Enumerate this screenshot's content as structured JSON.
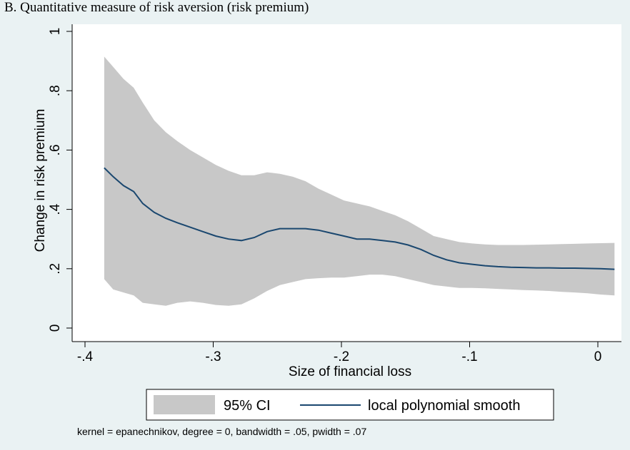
{
  "chart_data": {
    "type": "line",
    "title": "B. Quantitative measure of risk aversion (risk premium)",
    "xlabel": "Size of financial loss",
    "ylabel": "Change in risk premium",
    "xlim": [
      -0.4,
      0.015
    ],
    "ylim": [
      0,
      1
    ],
    "x_ticks": [
      -0.4,
      -0.3,
      -0.2,
      -0.1,
      0
    ],
    "x_tick_labels": [
      "-.4",
      "-.3",
      "-.2",
      "-.1",
      "0"
    ],
    "y_ticks": [
      0,
      0.2,
      0.4,
      0.6,
      0.8,
      1
    ],
    "y_tick_labels": [
      "0",
      ".2",
      ".4",
      ".6",
      ".8",
      "1"
    ],
    "grid": false,
    "legend_position": "bottom",
    "colors": {
      "plot_region": "#ffffff",
      "outer_background": "#eaf2f3",
      "ci_band": "#c8c8c8",
      "line": "#1a476f"
    },
    "series": [
      {
        "name": "95% CI",
        "kind": "band",
        "x": [
          -0.385,
          -0.378,
          -0.37,
          -0.362,
          -0.355,
          -0.346,
          -0.337,
          -0.328,
          -0.318,
          -0.308,
          -0.298,
          -0.288,
          -0.278,
          -0.268,
          -0.258,
          -0.248,
          -0.238,
          -0.228,
          -0.218,
          -0.208,
          -0.198,
          -0.188,
          -0.178,
          -0.168,
          -0.158,
          -0.148,
          -0.138,
          -0.128,
          -0.118,
          -0.108,
          -0.098,
          -0.088,
          -0.078,
          -0.068,
          -0.058,
          -0.048,
          -0.038,
          -0.028,
          -0.018,
          -0.008,
          0.002,
          0.013
        ],
        "upper": [
          0.915,
          0.88,
          0.84,
          0.81,
          0.76,
          0.7,
          0.66,
          0.63,
          0.6,
          0.575,
          0.55,
          0.53,
          0.515,
          0.515,
          0.525,
          0.52,
          0.51,
          0.495,
          0.47,
          0.45,
          0.43,
          0.42,
          0.41,
          0.395,
          0.38,
          0.36,
          0.335,
          0.31,
          0.3,
          0.29,
          0.285,
          0.282,
          0.28,
          0.28,
          0.28,
          0.281,
          0.282,
          0.283,
          0.284,
          0.285,
          0.286,
          0.287
        ],
        "lower": [
          0.165,
          0.13,
          0.12,
          0.11,
          0.085,
          0.08,
          0.075,
          0.085,
          0.09,
          0.085,
          0.078,
          0.075,
          0.08,
          0.1,
          0.125,
          0.145,
          0.155,
          0.165,
          0.168,
          0.17,
          0.17,
          0.175,
          0.18,
          0.18,
          0.175,
          0.165,
          0.155,
          0.145,
          0.14,
          0.135,
          0.135,
          0.134,
          0.132,
          0.13,
          0.128,
          0.127,
          0.125,
          0.122,
          0.12,
          0.117,
          0.113,
          0.11
        ]
      },
      {
        "name": "local polynomial smooth",
        "kind": "line",
        "x": [
          -0.385,
          -0.378,
          -0.37,
          -0.362,
          -0.355,
          -0.346,
          -0.337,
          -0.328,
          -0.318,
          -0.308,
          -0.298,
          -0.288,
          -0.278,
          -0.268,
          -0.258,
          -0.248,
          -0.238,
          -0.228,
          -0.218,
          -0.208,
          -0.198,
          -0.188,
          -0.178,
          -0.168,
          -0.158,
          -0.148,
          -0.138,
          -0.128,
          -0.118,
          -0.108,
          -0.098,
          -0.088,
          -0.078,
          -0.068,
          -0.058,
          -0.048,
          -0.038,
          -0.028,
          -0.018,
          -0.008,
          0.002,
          0.013
        ],
        "y": [
          0.54,
          0.51,
          0.48,
          0.46,
          0.42,
          0.39,
          0.37,
          0.355,
          0.34,
          0.325,
          0.31,
          0.3,
          0.295,
          0.305,
          0.325,
          0.335,
          0.335,
          0.335,
          0.33,
          0.32,
          0.31,
          0.3,
          0.3,
          0.295,
          0.29,
          0.28,
          0.265,
          0.245,
          0.23,
          0.22,
          0.215,
          0.21,
          0.207,
          0.205,
          0.204,
          0.203,
          0.203,
          0.202,
          0.202,
          0.201,
          0.2,
          0.198
        ]
      }
    ],
    "legend": {
      "entries": [
        "95% CI",
        "local polynomial smooth"
      ]
    },
    "note": "kernel = epanechnikov, degree = 0, bandwidth = .05, pwidth = .07"
  }
}
